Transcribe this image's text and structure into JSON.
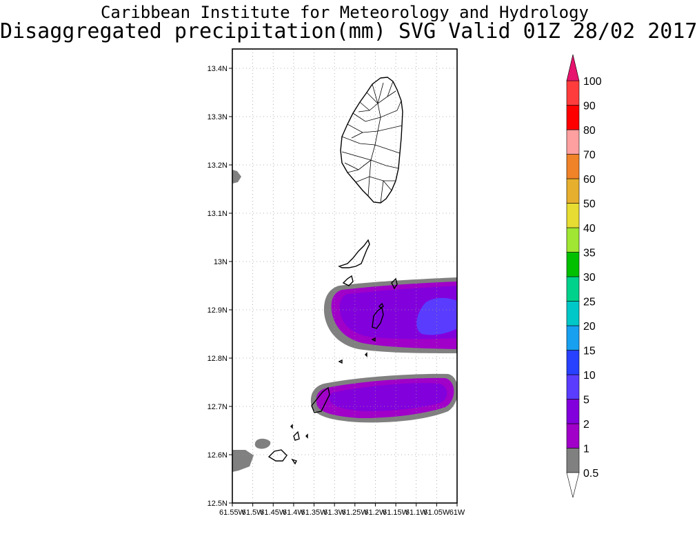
{
  "header": {
    "institute": "Caribbean Institute for Meteorology and Hydrology",
    "product": "Disaggregated precipitation(mm) SVG Valid 01Z 28/02 2017"
  },
  "map": {
    "lat_range": [
      12.5,
      13.44
    ],
    "lon_range": [
      -61.55,
      -61.0
    ],
    "lat_ticks": [
      {
        "value": 13.4,
        "label": "13.4N"
      },
      {
        "value": 13.3,
        "label": "13.3N"
      },
      {
        "value": 13.2,
        "label": "13.2N"
      },
      {
        "value": 13.1,
        "label": "13.1N"
      },
      {
        "value": 13.0,
        "label": "13N"
      },
      {
        "value": 12.9,
        "label": "12.9N"
      },
      {
        "value": 12.8,
        "label": "12.8N"
      },
      {
        "value": 12.7,
        "label": "12.7N"
      },
      {
        "value": 12.6,
        "label": "12.6N"
      },
      {
        "value": 12.5,
        "label": "12.5N"
      }
    ],
    "lon_ticks": [
      {
        "value": -61.55,
        "label": "61.55W"
      },
      {
        "value": -61.5,
        "label": "61.5W"
      },
      {
        "value": -61.45,
        "label": "61.45W"
      },
      {
        "value": -61.4,
        "label": "61.4W"
      },
      {
        "value": -61.35,
        "label": "61.35W"
      },
      {
        "value": -61.3,
        "label": "61.3W"
      },
      {
        "value": -61.25,
        "label": "61.25W"
      },
      {
        "value": -61.2,
        "label": "61.2W"
      },
      {
        "value": -61.15,
        "label": "61.15W"
      },
      {
        "value": -61.1,
        "label": "61.1W"
      },
      {
        "value": -61.05,
        "label": "61.05W"
      },
      {
        "value": -61.0,
        "label": "61W"
      }
    ],
    "grid": "dotted"
  },
  "legend": {
    "units": "mm",
    "bins": [
      {
        "label": "0.5",
        "color": "#808080"
      },
      {
        "label": "1",
        "color": "#a000c8"
      },
      {
        "label": "2",
        "color": "#8200dc"
      },
      {
        "label": "5",
        "color": "#5a3cff"
      },
      {
        "label": "10",
        "color": "#2840ff"
      },
      {
        "label": "15",
        "color": "#18a0f0"
      },
      {
        "label": "20",
        "color": "#00c8c8"
      },
      {
        "label": "25",
        "color": "#00d28c"
      },
      {
        "label": "30",
        "color": "#00c000"
      },
      {
        "label": "35",
        "color": "#a0e632"
      },
      {
        "label": "40",
        "color": "#e6dc32"
      },
      {
        "label": "50",
        "color": "#e6af2d"
      },
      {
        "label": "60",
        "color": "#f08228"
      },
      {
        "label": "70",
        "color": "#ffa0a0"
      },
      {
        "label": "80",
        "color": "#ff0000"
      },
      {
        "label": "90",
        "color": "#ff3c3c"
      },
      {
        "label": "100",
        "color": "#e6146e"
      }
    ],
    "under_color": "#ffffff",
    "over_color": "#e6146e"
  },
  "precipitation_areas": [
    {
      "name": "northern-band",
      "level_labels": [
        "0.5",
        "1",
        "2",
        "5"
      ]
    },
    {
      "name": "southern-band",
      "level_labels": [
        "0.5",
        "1",
        "2"
      ]
    }
  ]
}
